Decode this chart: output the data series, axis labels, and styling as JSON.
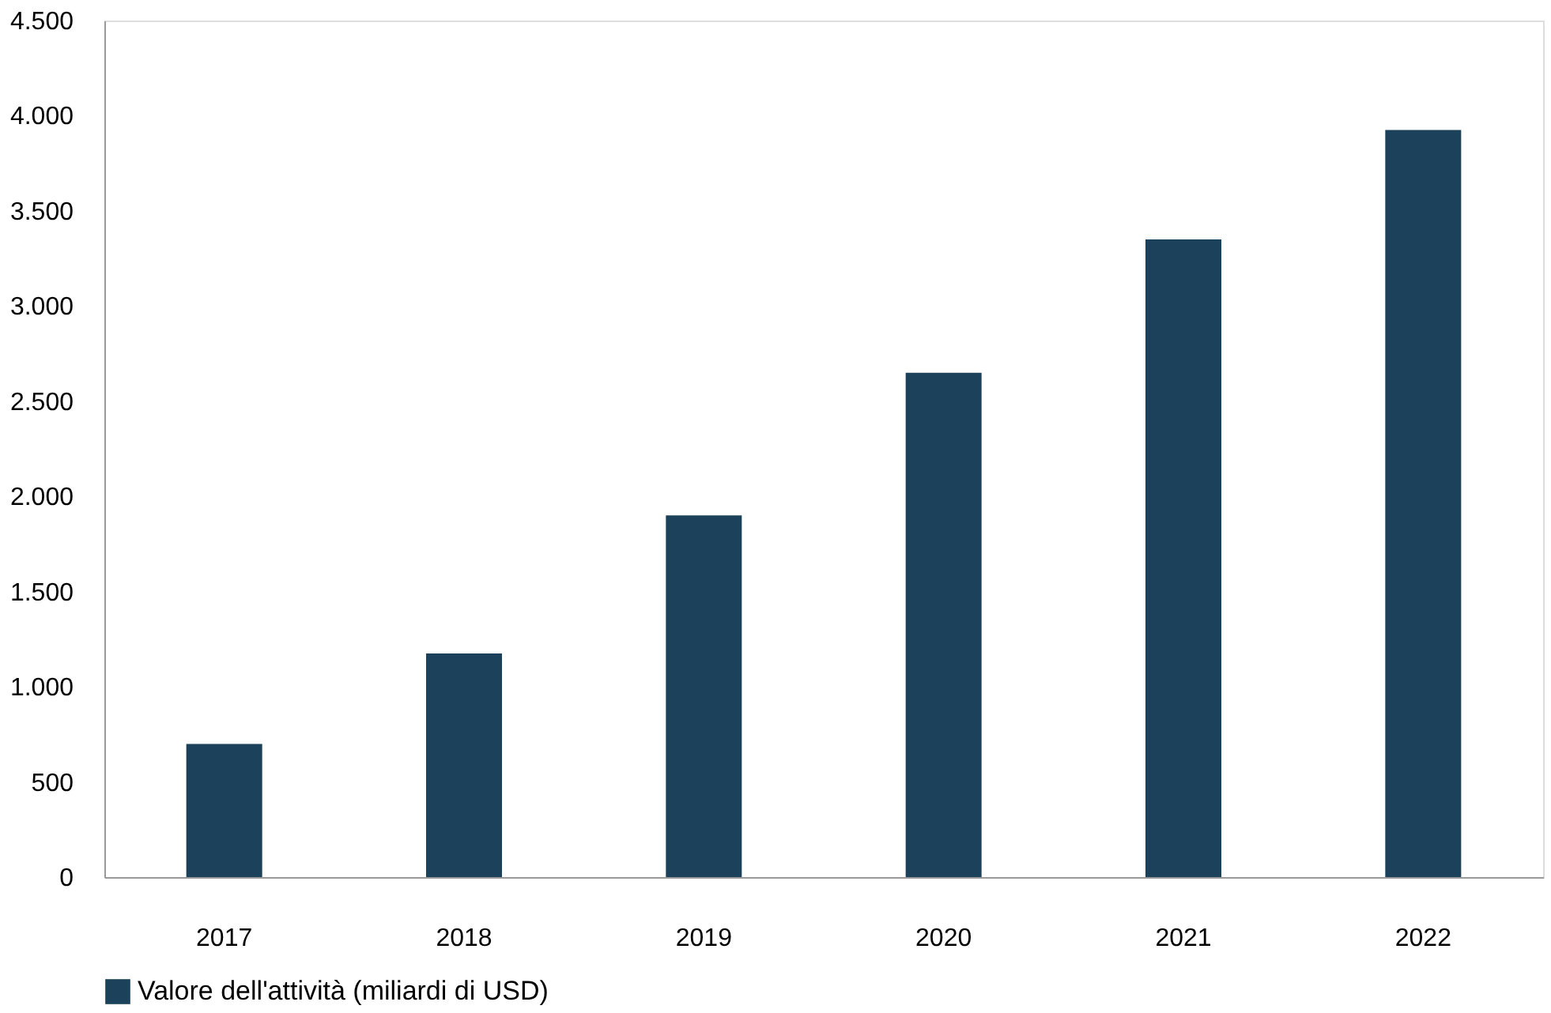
{
  "chart_data": {
    "type": "bar",
    "categories": [
      "2017",
      "2018",
      "2019",
      "2020",
      "2021",
      "2022"
    ],
    "series": [
      {
        "name": "Valore dell'attività (miliardi di USD)",
        "color": "#1c425b",
        "values": [
          700,
          1175,
          1900,
          2650,
          3350,
          3925
        ]
      }
    ],
    "ylim": [
      0,
      4500
    ],
    "yticks": [
      0,
      500,
      {
        "value": 1000,
        "label": "1.000"
      },
      {
        "value": 1500,
        "label": "1.500"
      },
      {
        "value": 2000,
        "label": "2.000"
      },
      {
        "value": 2500,
        "label": "2.500"
      },
      {
        "value": 3000,
        "label": "3.000"
      },
      {
        "value": 3500,
        "label": "3.500"
      },
      {
        "value": 4000,
        "label": "4.000"
      },
      {
        "value": 4500,
        "label": "4.500"
      }
    ],
    "grid": false,
    "legend": "bottom"
  }
}
